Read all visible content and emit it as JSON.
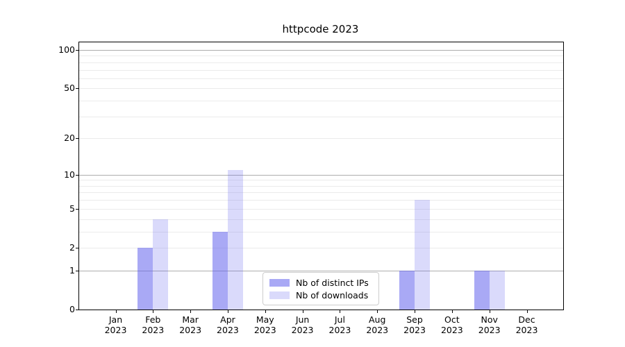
{
  "chart_data": {
    "type": "bar",
    "title": "httpcode 2023",
    "categories": [
      "Jan 2023",
      "Feb 2023",
      "Mar 2023",
      "Apr 2023",
      "May 2023",
      "Jun 2023",
      "Jul 2023",
      "Aug 2023",
      "Sep 2023",
      "Oct 2023",
      "Nov 2023",
      "Dec 2023"
    ],
    "series": [
      {
        "name": "Nb of distinct IPs",
        "color": "rgba(99,99,237,0.55)",
        "values": [
          0,
          2,
          0,
          3,
          0,
          0,
          0,
          0,
          1,
          0,
          1,
          0
        ]
      },
      {
        "name": "Nb of downloads",
        "color": "rgba(99,99,237,0.24)",
        "values": [
          0,
          4,
          0,
          11,
          0,
          0,
          0,
          0,
          6,
          0,
          1,
          0
        ]
      }
    ],
    "yscale": "log1p",
    "ylim": [
      0,
      114.7
    ],
    "yticks": [
      0,
      1,
      2,
      5,
      10,
      20,
      50,
      100
    ],
    "major_gridlines": [
      1,
      10,
      100
    ],
    "minor_gridlines": [
      2,
      3,
      4,
      5,
      6,
      7,
      8,
      9,
      20,
      30,
      40,
      50,
      60,
      70,
      80,
      90
    ],
    "legend_position": "lower center",
    "grid": "on"
  }
}
